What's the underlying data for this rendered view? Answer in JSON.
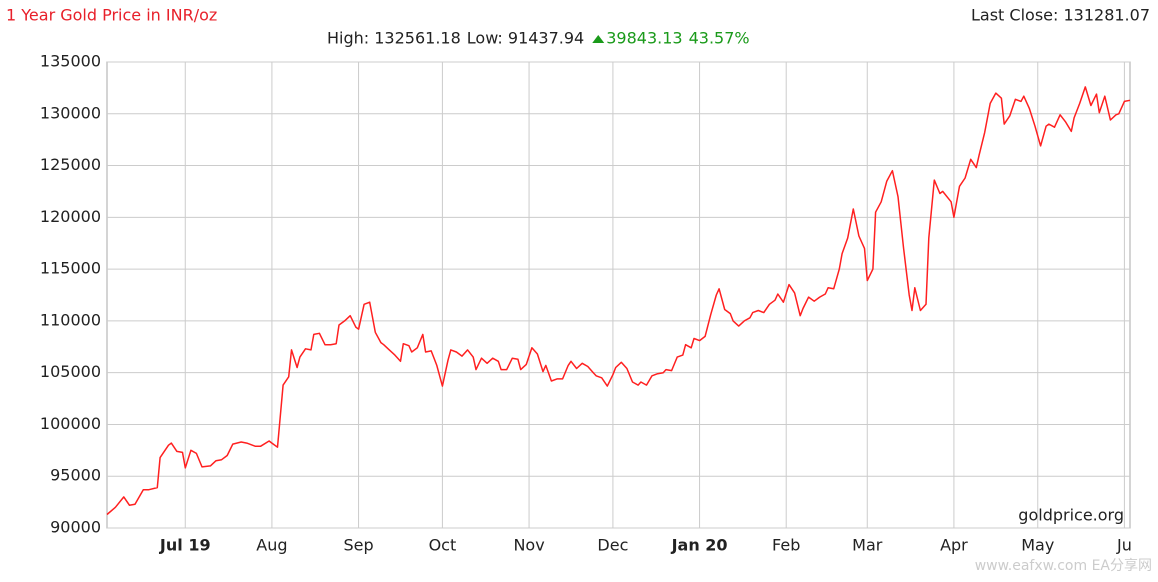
{
  "chart_data": {
    "type": "line",
    "title": "1 Year Gold Price in INR/oz",
    "last_close": "Last Close: 131281.07",
    "high": "High: 132561.18",
    "low": "Low: 91437.94",
    "change": "39843.13",
    "change_pct": "43.57%",
    "source": "goldprice.org",
    "watermark": "www.eafxw.com  EA分享网",
    "color": "#ff2020",
    "grid": true,
    "xlim": [
      0,
      366
    ],
    "ylim": [
      90000,
      135000
    ],
    "yticks": [
      90000,
      95000,
      100000,
      105000,
      110000,
      115000,
      120000,
      125000,
      130000,
      135000
    ],
    "xticks": [
      {
        "value": 28,
        "label": "Jul 19"
      },
      {
        "value": 59,
        "label": "Aug"
      },
      {
        "value": 90,
        "label": "Sep"
      },
      {
        "value": 120,
        "label": "Oct"
      },
      {
        "value": 151,
        "label": "Nov"
      },
      {
        "value": 181,
        "label": "Dec"
      },
      {
        "value": 212,
        "label": "Jan 20"
      },
      {
        "value": 243,
        "label": "Feb"
      },
      {
        "value": 272,
        "label": "Mar"
      },
      {
        "value": 303,
        "label": "Apr"
      },
      {
        "value": 333,
        "label": "May"
      },
      {
        "value": 364,
        "label": "Ju"
      }
    ],
    "x": [
      0,
      3,
      6,
      8,
      10,
      13,
      15,
      18,
      19,
      22,
      23,
      25,
      27,
      28,
      30,
      32,
      34,
      37,
      39,
      41,
      43,
      45,
      48,
      50,
      53,
      55,
      58,
      59,
      61,
      63,
      65,
      66,
      68,
      69,
      71,
      73,
      74,
      76,
      78,
      80,
      82,
      83,
      85,
      87,
      89,
      90,
      92,
      94,
      96,
      98,
      99,
      101,
      103,
      105,
      106,
      108,
      109,
      111,
      113,
      114,
      116,
      118,
      120,
      122,
      123,
      125,
      127,
      129,
      131,
      132,
      134,
      136,
      138,
      140,
      141,
      143,
      145,
      147,
      148,
      150,
      152,
      154,
      156,
      157,
      159,
      161,
      163,
      165,
      166,
      168,
      170,
      172,
      174,
      175,
      177,
      179,
      181,
      182,
      184,
      186,
      188,
      190,
      191,
      193,
      195,
      197,
      199,
      200,
      202,
      204,
      206,
      207,
      209,
      210,
      212,
      214,
      216,
      218,
      219,
      221,
      223,
      224,
      226,
      228,
      230,
      231,
      233,
      235,
      237,
      239,
      240,
      242,
      244,
      246,
      248,
      249,
      251,
      253,
      255,
      257,
      258,
      260,
      262,
      263,
      265,
      267,
      269,
      271,
      272,
      274,
      275,
      277,
      279,
      281,
      283,
      285,
      287,
      288,
      289,
      291,
      293,
      294,
      296,
      298,
      299,
      302,
      303,
      305,
      307,
      309,
      311,
      312,
      314,
      316,
      318,
      320,
      321,
      323,
      325,
      327,
      328,
      330,
      332,
      334,
      336,
      337,
      339,
      341,
      343,
      345,
      346,
      348,
      350,
      352,
      354,
      355,
      357,
      359,
      361,
      362,
      364,
      366
    ],
    "values": [
      91300,
      92000,
      93000,
      92200,
      92300,
      93700,
      93700,
      93900,
      96800,
      98000,
      98200,
      97400,
      97300,
      95800,
      97500,
      97200,
      95900,
      96000,
      96500,
      96600,
      97000,
      98100,
      98300,
      98200,
      97900,
      97900,
      98400,
      98200,
      97800,
      103800,
      104600,
      107200,
      105500,
      106500,
      107300,
      107200,
      108700,
      108800,
      107700,
      107700,
      107800,
      109600,
      110000,
      110500,
      109400,
      109200,
      111600,
      111800,
      108900,
      107900,
      107700,
      107200,
      106700,
      106100,
      107800,
      107600,
      107000,
      107400,
      108700,
      107000,
      107100,
      105700,
      103700,
      106200,
      107200,
      107000,
      106600,
      107200,
      106500,
      105300,
      106400,
      105900,
      106400,
      106100,
      105300,
      105300,
      106400,
      106300,
      105300,
      105800,
      107400,
      106800,
      105100,
      105700,
      104200,
      104400,
      104400,
      105700,
      106100,
      105400,
      105900,
      105600,
      105000,
      104700,
      104500,
      103700,
      104800,
      105500,
      106000,
      105400,
      104100,
      103800,
      104100,
      103800,
      104700,
      104900,
      105000,
      105300,
      105200,
      106500,
      106700,
      107700,
      107400,
      108300,
      108100,
      108500,
      110600,
      112500,
      113100,
      111100,
      110700,
      110000,
      109500,
      110000,
      110300,
      110800,
      111000,
      110800,
      111600,
      112000,
      112600,
      111800,
      113500,
      112700,
      110500,
      111200,
      112300,
      111900,
      112300,
      112600,
      113200,
      113100,
      115000,
      116500,
      118000,
      120800,
      118200,
      117000,
      113900,
      115000,
      120500,
      121500,
      123500,
      124500,
      122000,
      117000,
      112500,
      111000,
      113200,
      111000,
      111600,
      118000,
      123600,
      122300,
      122500,
      121500,
      120000,
      123000,
      123800,
      125600,
      124800,
      126000,
      128200,
      131000,
      132000,
      131500,
      129000,
      129800,
      131400,
      131200,
      131700,
      130500,
      128800,
      126900,
      128800,
      129000,
      128700,
      129900,
      129200,
      128300,
      129600,
      131000,
      132600,
      130800,
      131900,
      130100,
      131700,
      129400,
      129900,
      130000,
      131200,
      131300
    ]
  }
}
